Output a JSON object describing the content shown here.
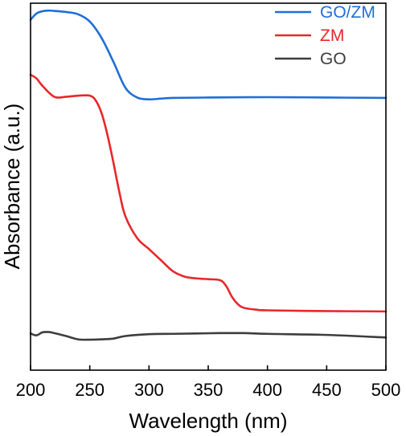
{
  "chart_data": {
    "type": "line",
    "xlabel": "Wavelength (nm)",
    "ylabel": "Absorbance (a.u.)",
    "xlim": [
      200,
      500
    ],
    "ylim": [
      0,
      1
    ],
    "x_ticks": [
      200,
      250,
      300,
      350,
      400,
      450,
      500
    ],
    "y_ticks_shown": false,
    "grid": false,
    "legend_position": "top-right",
    "series": [
      {
        "name": "GO/ZM",
        "color": "#1f6fd6",
        "x": [
          200,
          205,
          210,
          215,
          220,
          230,
          240,
          250,
          260,
          270,
          280,
          290,
          300,
          310,
          320,
          350,
          400,
          450,
          500
        ],
        "y": [
          0.955,
          0.972,
          0.978,
          0.98,
          0.979,
          0.976,
          0.97,
          0.95,
          0.905,
          0.84,
          0.77,
          0.743,
          0.738,
          0.74,
          0.742,
          0.743,
          0.744,
          0.743,
          0.742
        ]
      },
      {
        "name": "ZM",
        "color": "#e8272a",
        "x": [
          200,
          205,
          210,
          220,
          230,
          240,
          250,
          255,
          260,
          265,
          270,
          275,
          280,
          290,
          300,
          310,
          320,
          330,
          340,
          350,
          360,
          365,
          370,
          375,
          380,
          390,
          400,
          450,
          500
        ],
        "y": [
          0.805,
          0.795,
          0.775,
          0.745,
          0.745,
          0.748,
          0.748,
          0.735,
          0.7,
          0.64,
          0.565,
          0.485,
          0.42,
          0.36,
          0.33,
          0.3,
          0.27,
          0.255,
          0.25,
          0.248,
          0.245,
          0.23,
          0.2,
          0.18,
          0.17,
          0.165,
          0.163,
          0.161,
          0.16
        ]
      },
      {
        "name": "GO",
        "color": "#3d3d3d",
        "x": [
          200,
          205,
          210,
          215,
          220,
          230,
          240,
          250,
          260,
          270,
          280,
          300,
          320,
          340,
          360,
          380,
          400,
          450,
          500
        ],
        "y": [
          0.1,
          0.095,
          0.103,
          0.104,
          0.101,
          0.093,
          0.084,
          0.083,
          0.084,
          0.086,
          0.093,
          0.098,
          0.099,
          0.1,
          0.101,
          0.101,
          0.099,
          0.096,
          0.089
        ]
      }
    ]
  }
}
